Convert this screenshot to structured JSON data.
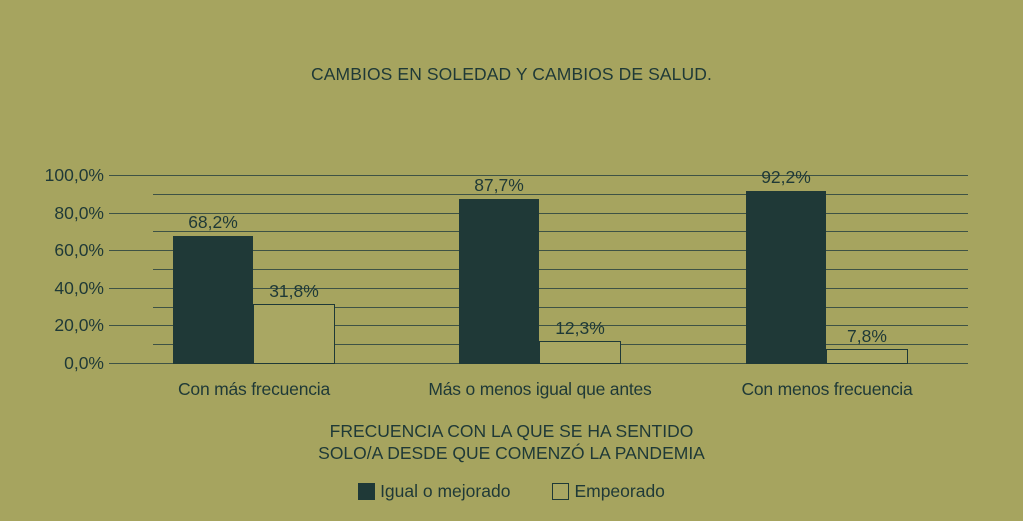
{
  "chart_data": {
    "type": "bar",
    "title": "CAMBIOS EN SOLEDAD Y CAMBIOS DE SALUD.",
    "categories": [
      "Con más frecuencia",
      "Más o menos igual que antes",
      "Con menos frecuencia"
    ],
    "series": [
      {
        "name": "Igual o mejorado",
        "values": [
          68.2,
          87.7,
          92.2
        ],
        "value_labels": [
          "68,2%",
          "87,7%",
          "92,2%"
        ],
        "style": "filled",
        "color": "#1f3937"
      },
      {
        "name": "Empeorado",
        "values": [
          31.8,
          12.3,
          7.8
        ],
        "value_labels": [
          "31,8%",
          "12,3%",
          "7,8%"
        ],
        "style": "outlined",
        "color": "#a9a763"
      }
    ],
    "xlabel_lines": [
      "FRECUENCIA CON LA QUE SE HA SENTIDO",
      "SOLO/A DESDE QUE COMENZÓ LA PANDEMIA"
    ],
    "ylabel": "",
    "ylim": [
      0,
      100
    ],
    "y_ticks": [
      {
        "value": 100,
        "label": "100,0%"
      },
      {
        "value": 80,
        "label": "80,0%"
      },
      {
        "value": 60,
        "label": "60,0%"
      },
      {
        "value": 40,
        "label": "40,0%"
      },
      {
        "value": 20,
        "label": "20,0%"
      },
      {
        "value": 0,
        "label": "0,0%"
      }
    ],
    "y_minor_step": 10,
    "grid": true,
    "legend_position": "bottom"
  },
  "legend": {
    "items": [
      {
        "label": "Igual o mejorado",
        "swatch": "filled"
      },
      {
        "label": "Empeorado",
        "swatch": "outlined"
      }
    ]
  },
  "colors": {
    "background": "#a6a45f",
    "bar_dark": "#1f3937",
    "bar_light_fill": "#a9a763",
    "gridline": "#3e5245",
    "text": "#1f3937"
  }
}
